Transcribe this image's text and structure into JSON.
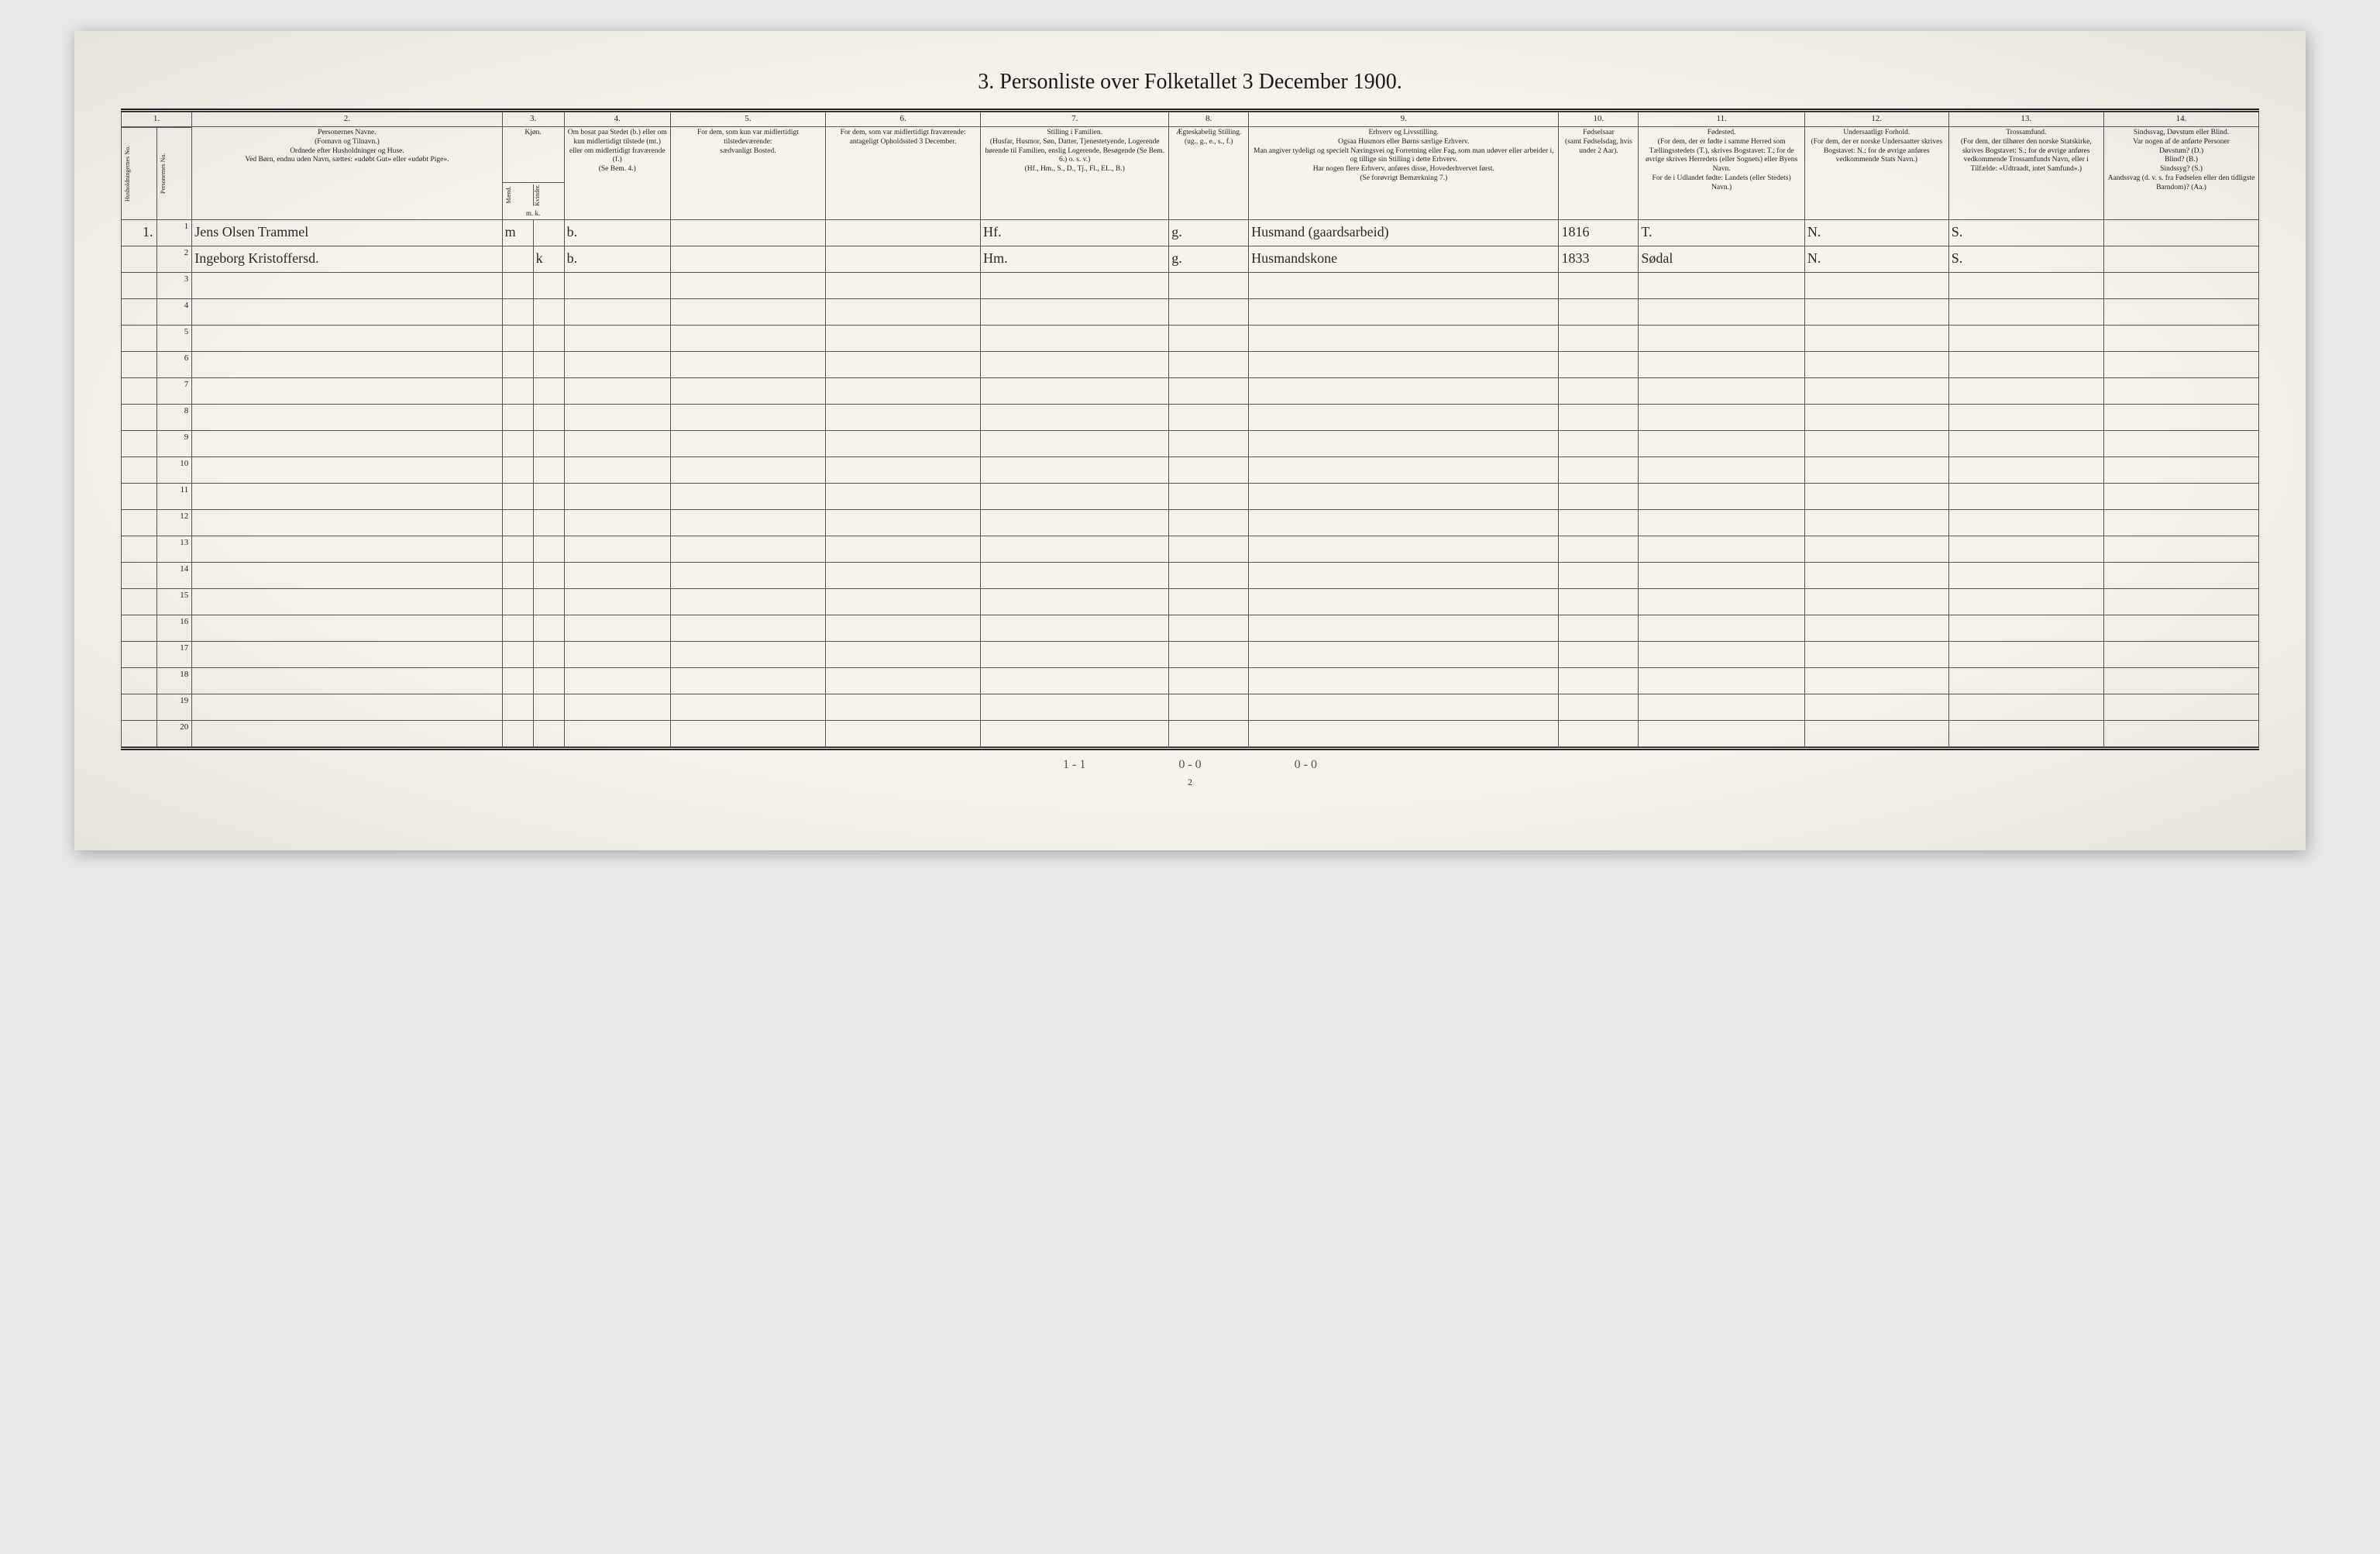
{
  "document": {
    "title": "3. Personliste over Folketallet 3 December 1900.",
    "page_number": "2",
    "background_color": "#f5f2ea",
    "ink_color": "#1a1a1a",
    "border_color": "#555555"
  },
  "column_numbers": [
    "1.",
    "2.",
    "3.",
    "4.",
    "5.",
    "6.",
    "7.",
    "8.",
    "9.",
    "10.",
    "11.",
    "12.",
    "13.",
    "14."
  ],
  "headers": {
    "col1": "Husholdningernes No.",
    "col1b": "Personernes No.",
    "col2": "Personernes Navne.\n(Fornavn og Tilnavn.)\nOrdnede efter Husholdninger og Huse.\nVed Børn, endnu uden Navn, sættes: «udøbt Gut» eller «udøbt Pige».",
    "col3_top": "Kjøn.",
    "col3_m": "Mænd.",
    "col3_k": "Kvinder.",
    "col3_bot": "m. k.",
    "col4": "Om bosat paa Stedet (b.) eller om kun midlertidigt tilstede (mt.) eller om midlertidigt fraværende (f.)\n(Se Bem. 4.)",
    "col5": "For dem, som kun var midlertidigt tilstedeværende:\nsædvanligt Bosted.",
    "col6": "For dem, som var midlertidigt fraværende:\nantageligt Opholdssted 3 December.",
    "col7": "Stilling i Familien.\n(Husfar, Husmor, Søn, Datter, Tjenestetyende, Logerende hørende til Familien, enslig Logerende, Besøgende (Se Bem. 6.) o. s. v.)\n(Hf., Hm., S., D., Tj., Fl., EL., B.)",
    "col8": "Ægteskabelig Stilling.\n(ug., g., e., s., f.)",
    "col9": "Erhverv og Livsstilling.\nOgsaa Husmors eller Børns særlige Erhverv.\nMan angiver tydeligt og specielt Næringsvei og Forretning eller Fag, som man udøver eller arbeider i, og tillige sin Stilling i dette Erhverv.\nHar nogen flere Erhverv, anføres disse, Hovederhvervet først.\n(Se forøvrigt Bemærkning 7.)",
    "col10": "Fødselsaar\n(samt Fødselsdag, hvis under 2 Aar).",
    "col11": "Fødested.\n(For dem, der er fødte i samme Herred som Tællingsstedets (T.), skrives Bogstavet: T.; for de øvrige skrives Herredets (eller Sognets) eller Byens Navn.\nFor de i Udlandet fødte: Landets (eller Stedets) Navn.)",
    "col12": "Undersaatligt Forhold.\n(For dem, der er norske Undersaatter skrives Bogstavet: N.; for de øvrige anføres vedkommende Stats Navn.)",
    "col13": "Trossamfund.\n(For dem, der tilhører den norske Statskirke, skrives Bogstavet: S.; for de øvrige anføres vedkommende Trossamfunds Navn, eller i Tilfælde: «Udtraadt, intet Samfund».)",
    "col14": "Sindssvag, Døvstum eller Blind.\nVar nogen af de anførte Personer\nDøvstum? (D.)\nBlind? (B.)\nSindssyg? (S.)\nAandssvag (d. v. s. fra Fødselen eller den tidligste Barndom)? (Aa.)"
  },
  "rows": [
    {
      "husNo": "1.",
      "persNo": "1",
      "name": "Jens Olsen Trammel",
      "sex_m": "m",
      "sex_k": "",
      "residence": "b.",
      "col5": "",
      "col6": "",
      "family_pos": "Hf.",
      "marital": "g.",
      "occupation": "Husmand (gaardsarbeid)",
      "birth_year": "1816",
      "birthplace": "T.",
      "nationality": "N.",
      "religion": "S.",
      "disability": ""
    },
    {
      "husNo": "",
      "persNo": "2",
      "name": "Ingeborg Kristoffersd.",
      "sex_m": "",
      "sex_k": "k",
      "residence": "b.",
      "col5": "",
      "col6": "",
      "family_pos": "Hm.",
      "marital": "g.",
      "occupation": "Husmandskone",
      "birth_year": "1833",
      "birthplace": "Sødal",
      "nationality": "N.",
      "religion": "S.",
      "disability": ""
    }
  ],
  "row_numbers": [
    "1",
    "2",
    "3",
    "4",
    "5",
    "6",
    "7",
    "8",
    "9",
    "10",
    "11",
    "12",
    "13",
    "14",
    "15",
    "16",
    "17",
    "18",
    "19",
    "20"
  ],
  "footer_notes": [
    "1 - 1",
    "0 - 0",
    "0 - 0"
  ]
}
